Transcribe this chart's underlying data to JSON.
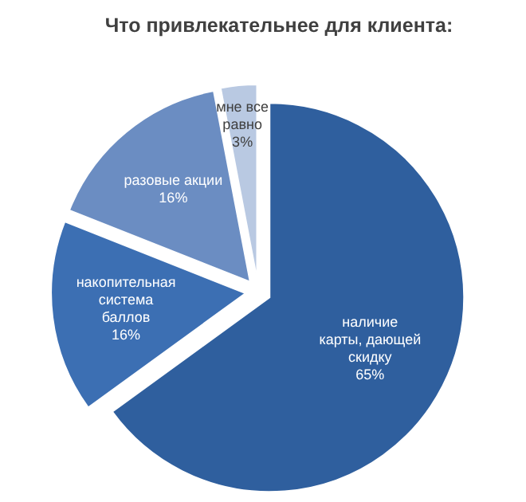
{
  "chart_data": {
    "type": "pie",
    "title": "Что привлекательнее для клиента:",
    "categories": [
      "наличие карты, дающей скидку",
      "накопительная система баллов",
      "разовые акции",
      "мне все равно"
    ],
    "values": [
      65,
      16,
      16,
      3
    ],
    "colors": [
      "#2f5f9e",
      "#3c6fb3",
      "#6b8dc2",
      "#b9c9e2"
    ],
    "value_labels": [
      "65%",
      "16%",
      "16%",
      "3%"
    ]
  }
}
